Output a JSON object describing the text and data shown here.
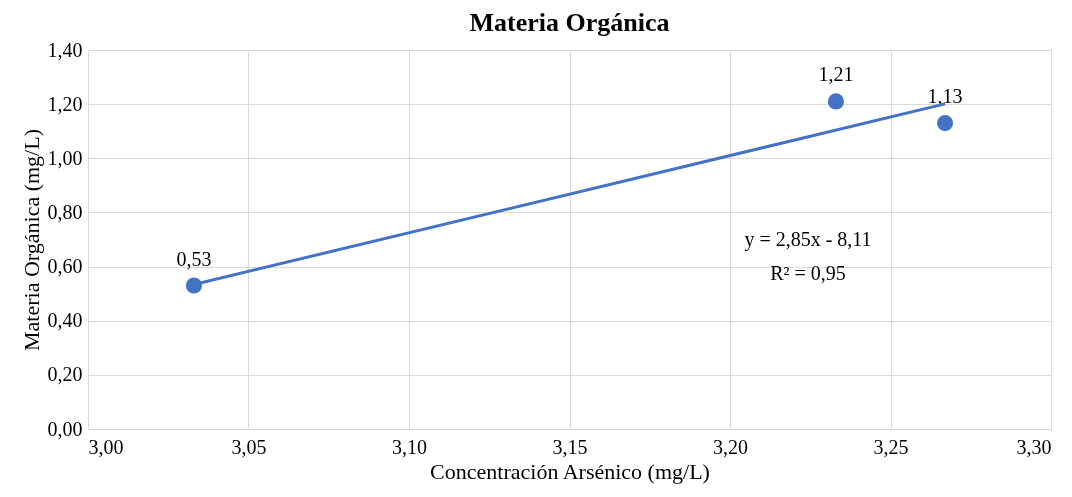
{
  "chart_data": {
    "type": "scatter",
    "title": "Materia Orgánica",
    "xlabel": "Concentración Arsénico (mg/L)",
    "ylabel": "Materia Orgánica (mg/L)",
    "series": [
      {
        "marker": "circle",
        "color": "#4472c4",
        "x": [
          3.033,
          3.233,
          3.267
        ],
        "values": [
          0.53,
          1.21,
          1.13
        ],
        "value_labels": [
          "0,53",
          "1,21",
          "1,13"
        ]
      },
      {
        "type": "line",
        "color": "#4472c4",
        "x": [
          3.033,
          3.267
        ],
        "values": [
          0.534,
          1.201
        ]
      }
    ],
    "xlim": [
      3.0,
      3.3
    ],
    "xticks": [
      {
        "value": 3.0,
        "label": "3,00"
      },
      {
        "value": 3.05,
        "label": "3,05"
      },
      {
        "value": 3.1,
        "label": "3,10"
      },
      {
        "value": 3.15,
        "label": "3,15"
      },
      {
        "value": 3.2,
        "label": "3,20"
      },
      {
        "value": 3.25,
        "label": "3,25"
      },
      {
        "value": 3.3,
        "label": "3,30"
      }
    ],
    "ylim": [
      0,
      1.4
    ],
    "yticks": [
      {
        "value": 0,
        "label": "0,00"
      },
      {
        "value": 0.2,
        "label": "0,20"
      },
      {
        "value": 0.4,
        "label": "0,40"
      },
      {
        "value": 0.6,
        "label": "0,60"
      },
      {
        "value": 0.8,
        "label": "0,80"
      },
      {
        "value": 1.0,
        "label": "1,00"
      },
      {
        "value": 1.2,
        "label": "1,20"
      },
      {
        "value": 1.4,
        "label": "1,40"
      }
    ],
    "annotations": [
      "y = 2,85x - 8,11",
      "R² = 0,95"
    ],
    "grid": true
  }
}
